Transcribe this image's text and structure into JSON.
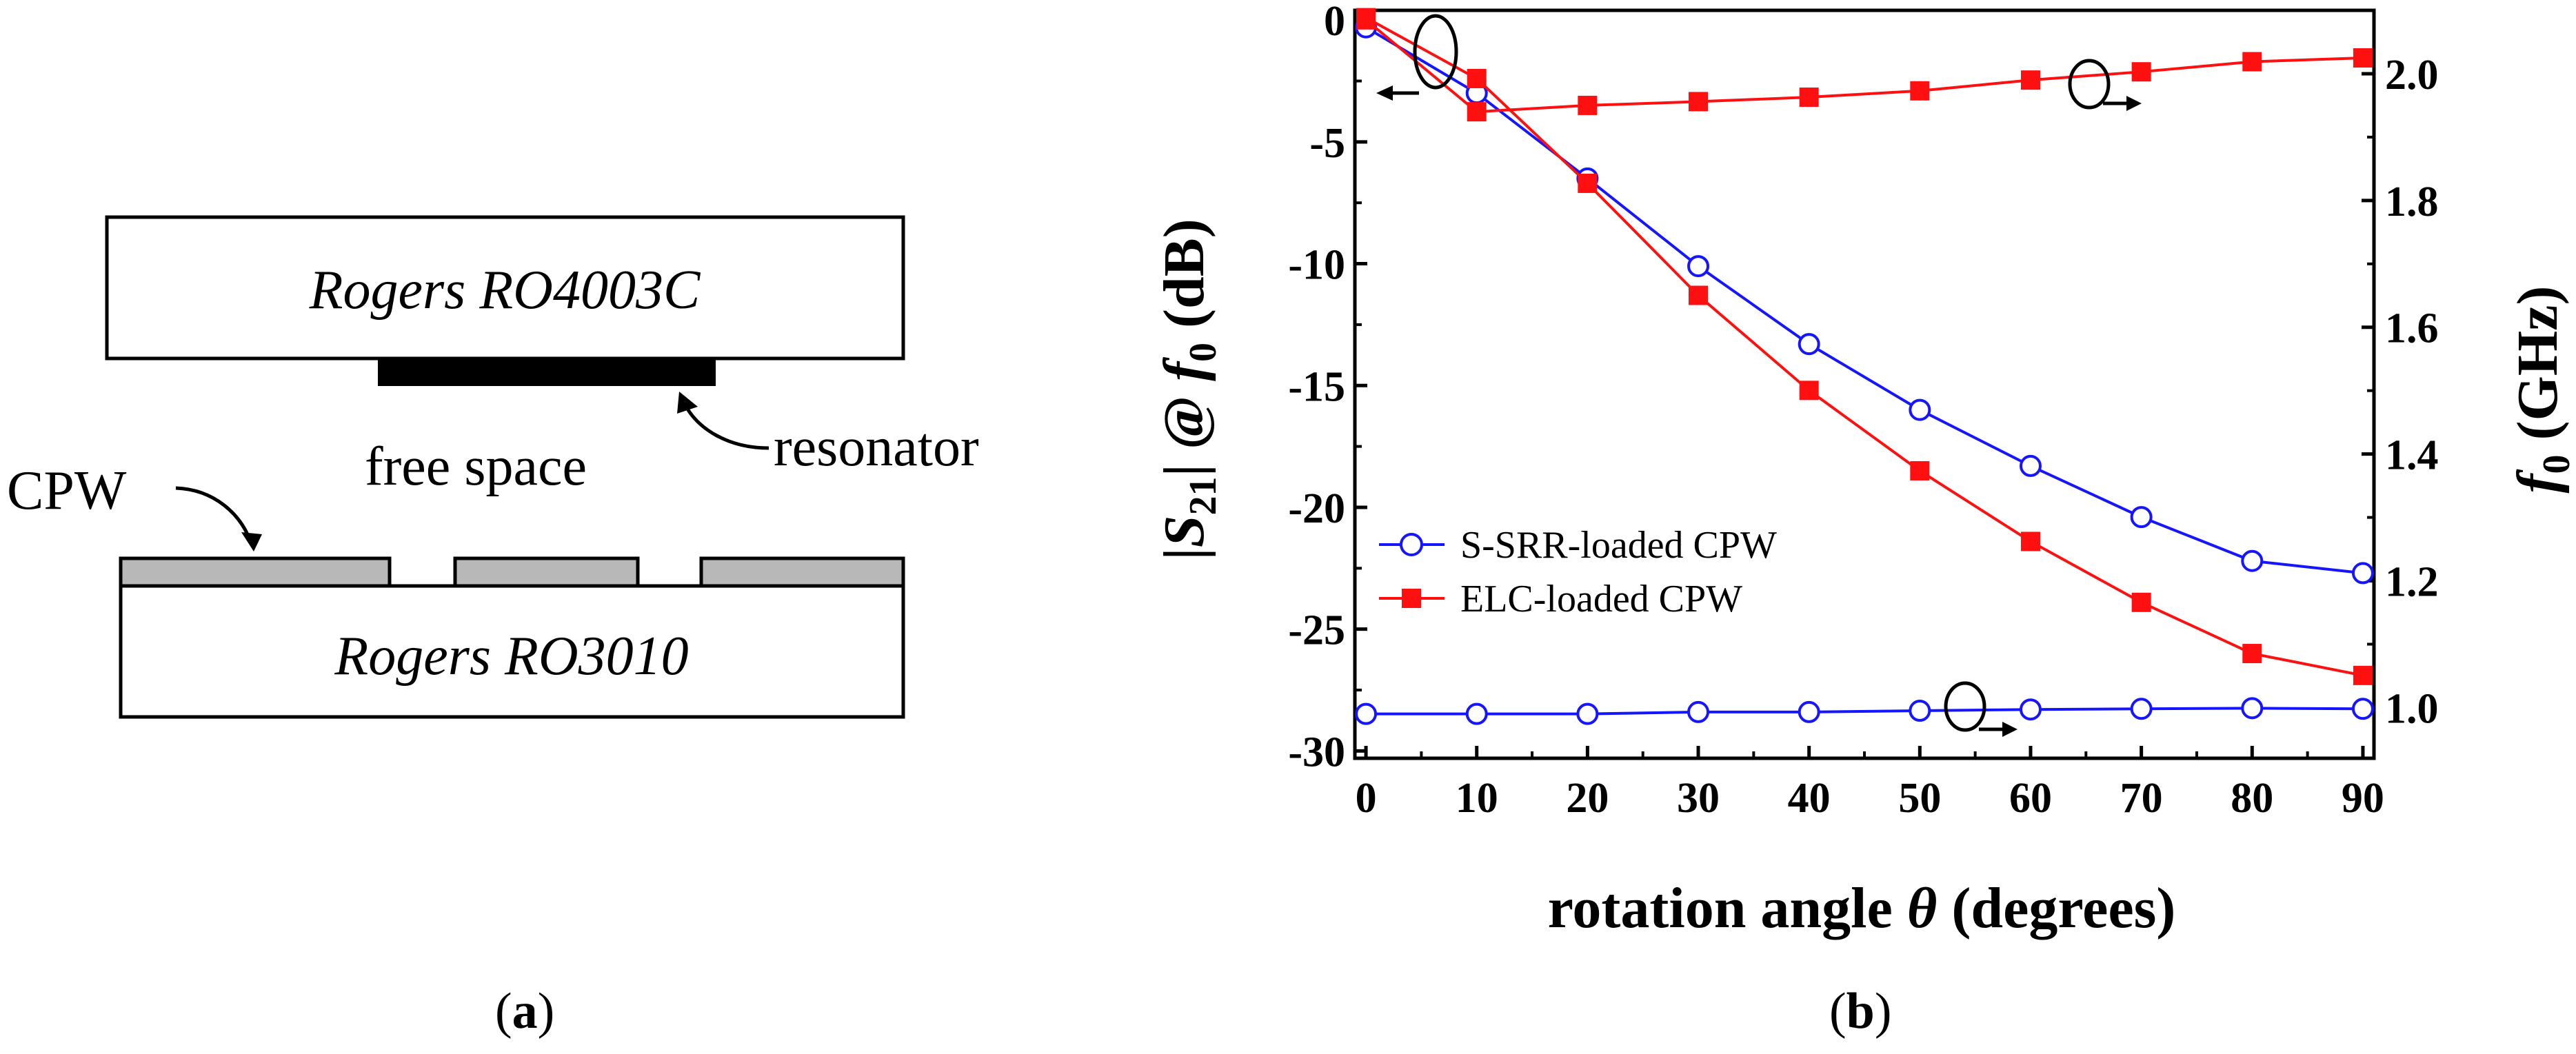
{
  "panel_a": {
    "caption": "(a)",
    "top_substrate": "Rogers RO4003C",
    "bottom_substrate": "Rogers RO3010",
    "middle_label": "free space",
    "resonator_label": "resonator",
    "cpw_label": "CPW"
  },
  "panel_b": {
    "caption": "(b)"
  },
  "colors": {
    "s_srr": "#1515ff",
    "elc": "#ff1010",
    "ink": "#000000",
    "metal": "#b8b8b8"
  },
  "chart_data": {
    "type": "line",
    "title": "",
    "xlabel": "rotation angle θ (degrees)",
    "ylabel_left": "|S21| @ f0 (dB)",
    "ylabel_right": "f0 (GHz)",
    "x": [
      0,
      10,
      20,
      30,
      40,
      50,
      60,
      70,
      80,
      90
    ],
    "xlim": [
      -1,
      91
    ],
    "ylim_left": [
      -30.3,
      0.4
    ],
    "ylim_right": [
      0.92,
      2.1
    ],
    "xticks": [
      0,
      10,
      20,
      30,
      40,
      50,
      60,
      70,
      80,
      90
    ],
    "yticks_left": [
      0,
      -5,
      -10,
      -15,
      -20,
      -25,
      -30
    ],
    "yticks_right": [
      1.0,
      1.2,
      1.4,
      1.6,
      1.8,
      2.0
    ],
    "series": [
      {
        "name": "S-SRR-loaded CPW",
        "axis": "left",
        "marker": "open-circle",
        "color": "#1515ff",
        "values": [
          -0.3,
          -3.0,
          -6.5,
          -10.1,
          -13.3,
          -16.0,
          -18.3,
          -20.4,
          -22.2,
          -22.7
        ]
      },
      {
        "name": "ELC-loaded CPW",
        "axis": "left",
        "marker": "filled-square",
        "color": "#ff1010",
        "values": [
          0.1,
          -2.4,
          -6.7,
          -11.3,
          -15.2,
          -18.5,
          -21.4,
          -23.9,
          -26.0,
          -26.9
        ]
      },
      {
        "name": "S-SRR-loaded CPW",
        "axis": "right",
        "marker": "open-circle",
        "color": "#1515ff",
        "values": [
          0.99,
          0.99,
          0.99,
          0.993,
          0.993,
          0.995,
          0.997,
          0.998,
          0.999,
          0.998
        ]
      },
      {
        "name": "ELC-loaded CPW",
        "axis": "right",
        "marker": "filled-square",
        "color": "#ff1010",
        "values": [
          2.085,
          1.94,
          1.95,
          1.956,
          1.963,
          1.973,
          1.99,
          2.003,
          2.019,
          2.025
        ]
      }
    ],
    "legend": [
      {
        "name": "S-SRR-loaded CPW",
        "marker": "open-circle",
        "color": "#1515ff"
      },
      {
        "name": "ELC-loaded CPW",
        "marker": "filled-square",
        "color": "#ff1010"
      }
    ],
    "legend_position": "lower-left"
  }
}
